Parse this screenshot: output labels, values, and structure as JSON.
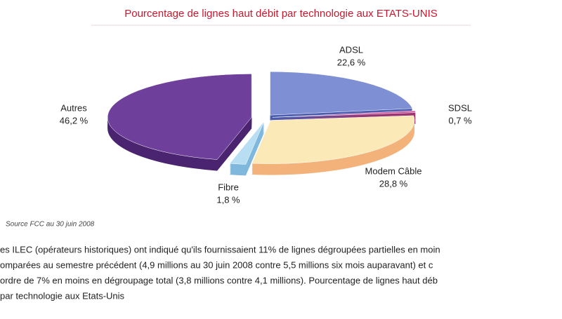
{
  "chart_data": {
    "type": "pie",
    "title": "Pourcentage de lignes haut débit par technologie aux ETATS-UNIS",
    "categories": [
      "ADSL",
      "SDSL",
      "Modem Câble",
      "Fibre",
      "Autres"
    ],
    "values": [
      22.6,
      0.7,
      28.8,
      1.8,
      46.2
    ],
    "value_labels": [
      "22,6 %",
      "0,7 %",
      "28,8 %",
      "1,8 %",
      "46,2 %"
    ],
    "colors": [
      "#7f8fd3",
      "#cf5aa0",
      "#fbeab8",
      "#b8def4",
      "#6f3f9c"
    ],
    "side_colors": [
      "#4a5cb0",
      "#9c3472",
      "#f2b27a",
      "#7fb8dc",
      "#4b2470"
    ]
  },
  "source": "Source FCC au 30 juin 2008",
  "body": [
    "es ILEC (opérateurs historiques) ont indiqué qu'ils fournissaient 11% de lignes dégroupées partielles en moin",
    "omparées au semestre précédent (4,9 millions au 30 juin 2008 contre 5,5 millions six mois auparavant) et c",
    "ordre de 7% en moins en dégroupage total (3,8 millions contre 4,1 millions). Pourcentage de lignes haut déb",
    "par technologie aux Etats-Unis"
  ]
}
